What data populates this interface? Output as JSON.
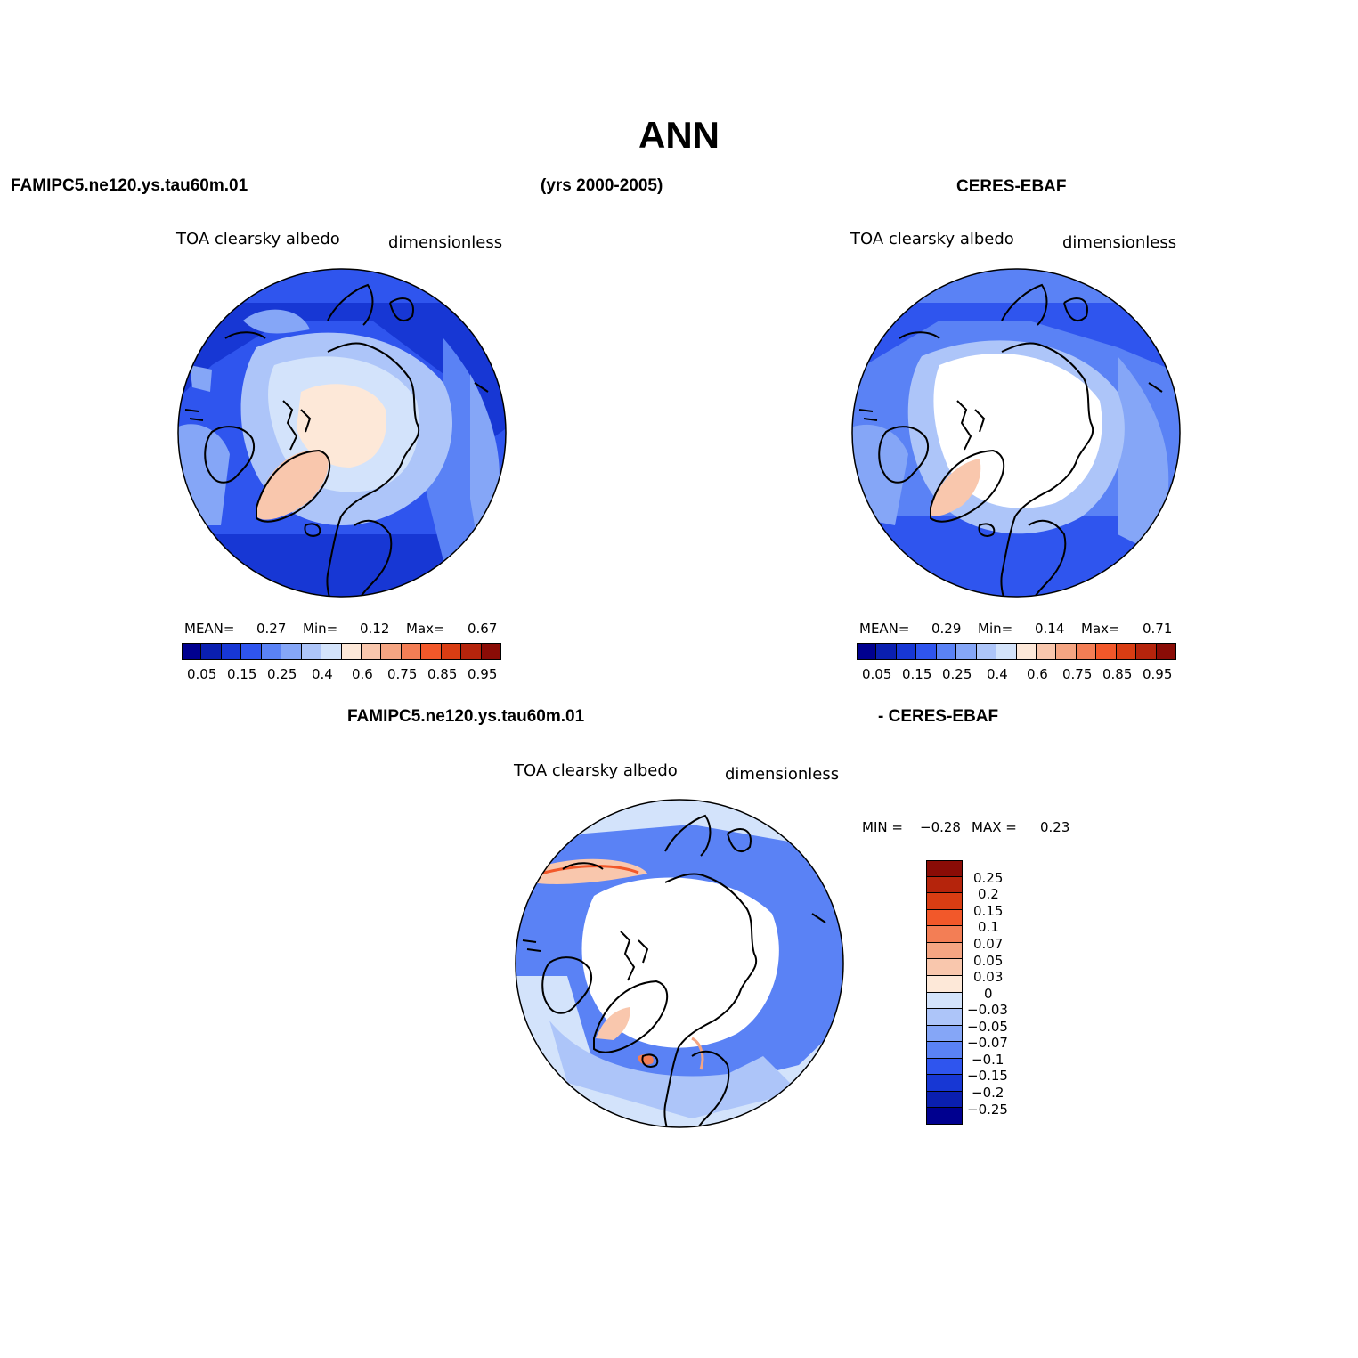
{
  "title": "ANN",
  "header": {
    "model": "FAMIPC5.ne120.ys.tau60m.01",
    "years": "(yrs 2000-2005)",
    "obs": "CERES-EBAF",
    "diff_left": "FAMIPC5.ne120.ys.tau60m.01",
    "diff_right": "- CERES-EBAF"
  },
  "panels": {
    "model": {
      "variable": "TOA clearsky albedo",
      "units": "dimensionless",
      "mean_label": "MEAN=",
      "mean": "0.27",
      "min_label": "Min=",
      "min": "0.12",
      "max_label": "Max=",
      "max": "0.67"
    },
    "obs": {
      "variable": "TOA clearsky albedo",
      "units": "dimensionless",
      "mean_label": "MEAN=",
      "mean": "0.29",
      "min_label": "Min=",
      "min": "0.14",
      "max_label": "Max=",
      "max": "0.71"
    },
    "diff": {
      "variable": "TOA clearsky albedo",
      "units": "dimensionless",
      "min_label": "MIN =",
      "min": "−0.28",
      "max_label": "MAX =",
      "max": "0.23"
    }
  },
  "colorbar_abs": {
    "colors": [
      "#00008f",
      "#0a1fb0",
      "#1737d4",
      "#2f55ee",
      "#5a82f5",
      "#85a6f7",
      "#adc5f9",
      "#d3e3fb",
      "#fde8d8",
      "#f9c7ad",
      "#f5a582",
      "#f37e55",
      "#f2582a",
      "#d93d13",
      "#b5240c",
      "#8a0c06"
    ],
    "labels": [
      "0.05",
      "0.15",
      "0.25",
      "0.4",
      "0.6",
      "0.75",
      "0.85",
      "0.95"
    ]
  },
  "colorbar_diff": {
    "colors_top_to_bottom": [
      "#8a0c06",
      "#b5240c",
      "#d93d13",
      "#f2582a",
      "#f37e55",
      "#f5a582",
      "#f9c7ad",
      "#fde8d8",
      "#d3e3fb",
      "#adc5f9",
      "#85a6f7",
      "#5a82f5",
      "#2f55ee",
      "#1737d4",
      "#0a1fb0",
      "#00008f"
    ],
    "labels": [
      "0.25",
      "0.2",
      "0.15",
      "0.1",
      "0.07",
      "0.05",
      "0.03",
      "0",
      "−0.03",
      "−0.05",
      "−0.07",
      "−0.1",
      "−0.15",
      "−0.2",
      "−0.25"
    ]
  }
}
